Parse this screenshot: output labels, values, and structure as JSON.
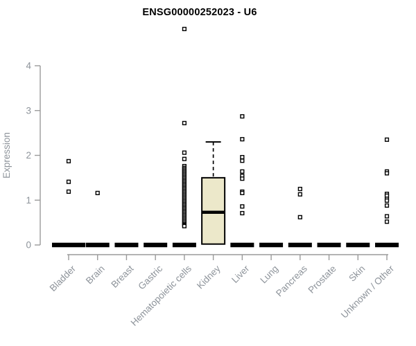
{
  "chart_data": {
    "type": "boxplot",
    "title": "ENSG00000252023 - U6",
    "ylabel": "Expression",
    "ylim": [
      0,
      4
    ],
    "yticks": [
      0,
      1,
      2,
      3,
      4
    ],
    "grid": false,
    "legend": false,
    "categories": [
      "Bladder",
      "Brain",
      "Breast",
      "Gastric",
      "Hematopoietic cells",
      "Kidney",
      "Liver",
      "Lung",
      "Pancreas",
      "Prostate",
      "Skin",
      "Unknown / Other"
    ],
    "series": [
      {
        "category": "Bladder",
        "zero_bar": true,
        "zero_bar_width": 48,
        "points": [
          1.87,
          1.41,
          1.19
        ]
      },
      {
        "category": "Brain",
        "zero_bar": true,
        "zero_bar_width": 34,
        "points": [
          1.16
        ]
      },
      {
        "category": "Breast",
        "zero_bar": true,
        "zero_bar_width": 34,
        "points": []
      },
      {
        "category": "Gastric",
        "zero_bar": true,
        "zero_bar_width": 34,
        "points": []
      },
      {
        "category": "Hematopoietic cells",
        "zero_bar": true,
        "zero_bar_width": 34,
        "points": [
          4.82,
          2.72,
          2.06,
          1.92,
          1.76,
          1.72,
          1.69,
          1.66,
          1.63,
          1.6,
          1.57,
          1.54,
          1.51,
          1.48,
          1.45,
          1.42,
          1.39,
          1.36,
          1.33,
          1.3,
          1.27,
          1.24,
          1.21,
          1.18,
          1.15,
          1.12,
          1.09,
          1.06,
          1.03,
          1.0,
          0.97,
          0.94,
          0.91,
          0.88,
          0.85,
          0.82,
          0.79,
          0.76,
          0.73,
          0.7,
          0.67,
          0.64,
          0.61,
          0.58,
          0.55,
          0.52,
          0.49,
          0.46,
          0.44,
          0.42
        ]
      },
      {
        "category": "Kidney",
        "zero_bar": false,
        "box": {
          "whisker_high": 2.3,
          "q3": 1.5,
          "median": 0.73,
          "q1": 0.02
        },
        "points": []
      },
      {
        "category": "Liver",
        "zero_bar": true,
        "zero_bar_width": 34,
        "points": [
          2.87,
          2.36,
          1.96,
          1.88,
          1.64,
          1.54,
          1.48,
          1.19,
          1.16,
          0.86,
          0.71
        ]
      },
      {
        "category": "Lung",
        "zero_bar": true,
        "zero_bar_width": 34,
        "points": []
      },
      {
        "category": "Pancreas",
        "zero_bar": true,
        "zero_bar_width": 34,
        "points": [
          1.25,
          1.13,
          0.62
        ]
      },
      {
        "category": "Prostate",
        "zero_bar": true,
        "zero_bar_width": 34,
        "points": []
      },
      {
        "category": "Skin",
        "zero_bar": true,
        "zero_bar_width": 34,
        "points": []
      },
      {
        "category": "Unknown / Other",
        "zero_bar": true,
        "zero_bar_width": 34,
        "points": [
          2.35,
          1.64,
          1.6,
          1.14,
          1.1,
          1.03,
          0.99,
          0.88,
          0.64,
          0.52
        ]
      }
    ],
    "colors": {
      "box_fill": "#ECE8CA",
      "box_stroke": "#000000",
      "median": "#000000",
      "zero_bar": "#000000",
      "point_fill": "#ffffff",
      "point_stroke": "#000000",
      "axis_line": "#9A9A9A",
      "axis_text": "#8D939A",
      "title": "#000000"
    }
  }
}
